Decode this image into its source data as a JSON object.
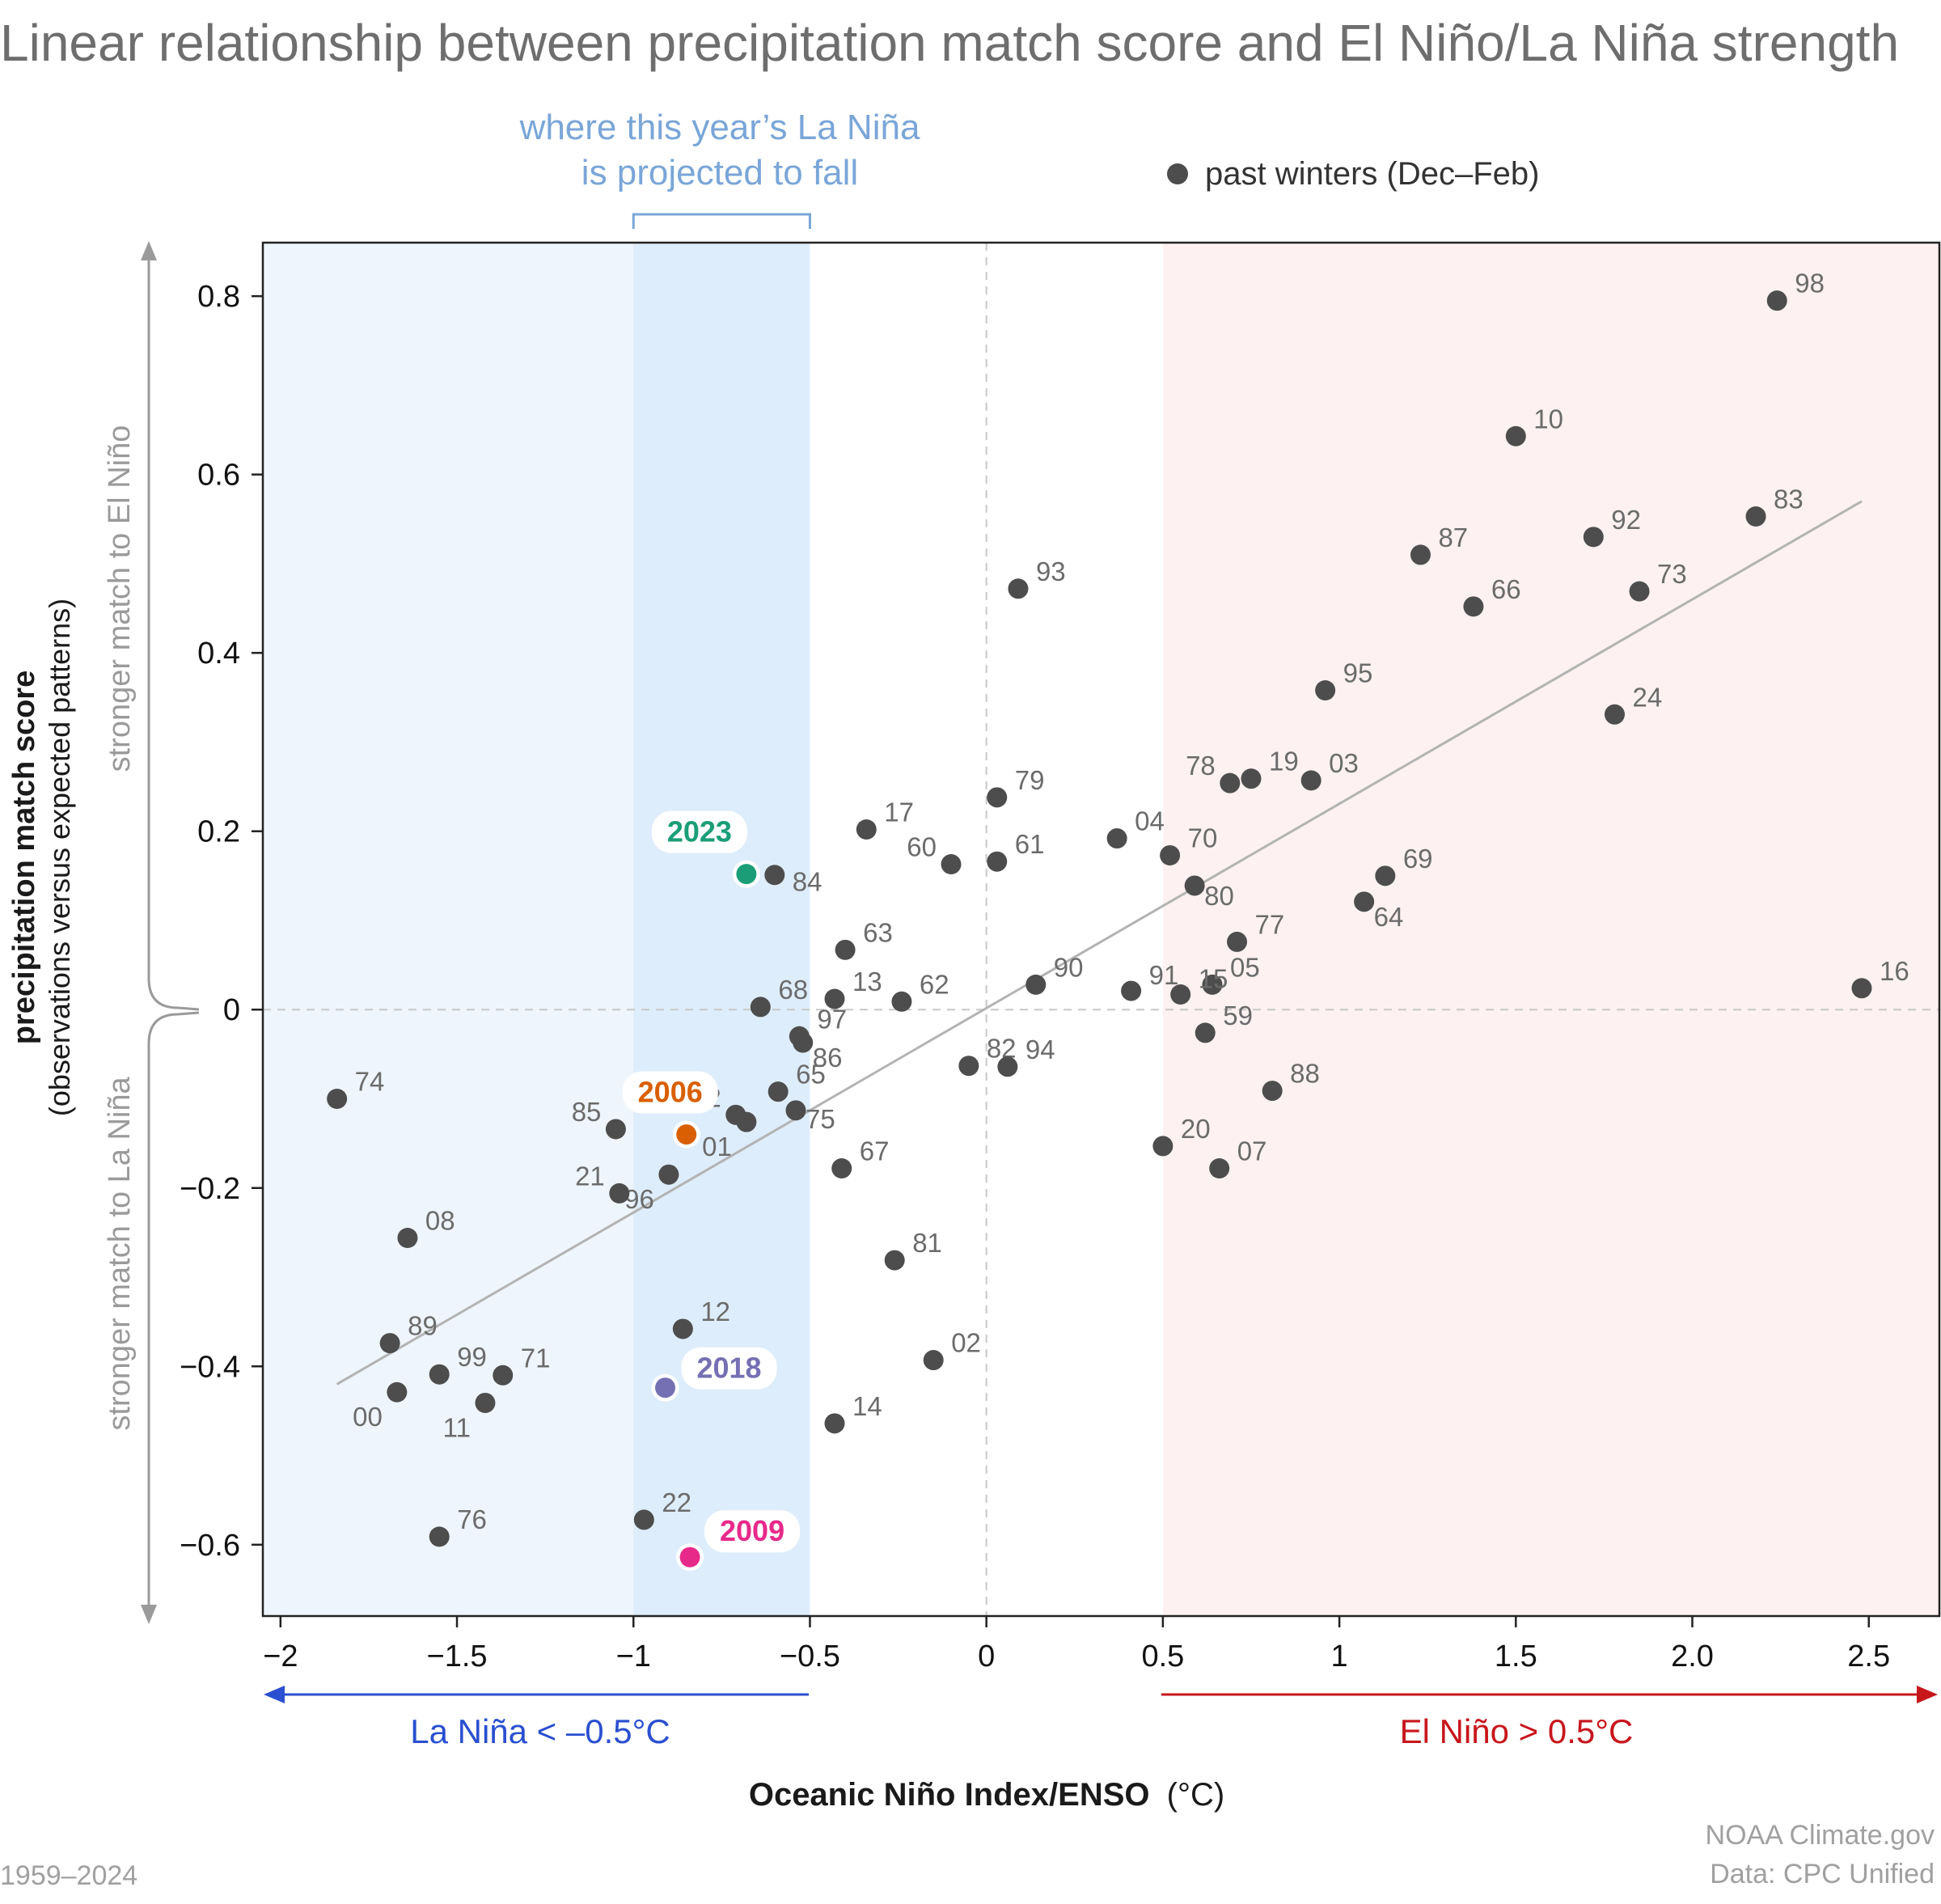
{
  "title": "Linear relationship between precipitation match score and El Niño/La Niña strength",
  "projection_label_line1": "where this year’s La Niña",
  "projection_label_line2": "is projected to fall",
  "legend_label": "past winters (Dec–Feb)",
  "y_label_main": "precipitation match score",
  "y_label_sub": "(observations versus expected patterns)",
  "y_side_upper": "stronger match to El Niño",
  "y_side_lower": "stronger match to La Niña",
  "x_label_main": "Oceanic Niño Index/ENSO",
  "x_label_unit": "(°C)",
  "la_nina_label": "La Niña < –0.5°C",
  "el_nino_label": "El Niño > 0.5°C",
  "footer_left": "1959–2024",
  "footer_right_1": "NOAA Climate.gov",
  "footer_right_2": "Data: CPC Unified",
  "colors": {
    "point": "#4d4d4d",
    "la_nina_shade": "#eef5fd",
    "projection_shade": "#deedfb",
    "el_nino_shade": "#fdf1f1",
    "trend": "#b3b3b3",
    "la_nina_arrow": "#2a4fd0",
    "el_nino_arrow": "#c8161d"
  },
  "chart_data": {
    "type": "scatter",
    "xlim": [
      -2.05,
      2.7
    ],
    "ylim": [
      -0.68,
      0.86
    ],
    "x_ticks": [
      -2,
      -1.5,
      -1,
      -0.5,
      0,
      0.5,
      1,
      1.5,
      2.0,
      2.5
    ],
    "x_tick_labels": [
      "−2",
      "−1.5",
      "−1",
      "−0.5",
      "0",
      "0.5",
      "1",
      "1.5",
      "2.0",
      "2.5"
    ],
    "y_ticks": [
      0.8,
      0.6,
      0.4,
      0.2,
      0,
      -0.2,
      -0.4,
      -0.6
    ],
    "y_tick_labels": [
      "0.8",
      "0.6",
      "0.4",
      "0.2",
      "0",
      "−0.2",
      "−0.4",
      "−0.6"
    ],
    "la_nina_threshold": -0.5,
    "el_nino_threshold": 0.5,
    "projected_range": [
      -1.0,
      -0.5
    ],
    "trend_line": {
      "x": [
        -1.84,
        2.48
      ],
      "y": [
        -0.42,
        0.57
      ]
    },
    "points": [
      {
        "label": "98",
        "x": 2.24,
        "y": 0.795
      },
      {
        "label": "10",
        "x": 1.5,
        "y": 0.643
      },
      {
        "label": "83",
        "x": 2.18,
        "y": 0.553
      },
      {
        "label": "92",
        "x": 1.72,
        "y": 0.53
      },
      {
        "label": "87",
        "x": 1.23,
        "y": 0.51
      },
      {
        "label": "73",
        "x": 1.85,
        "y": 0.469
      },
      {
        "label": "93",
        "x": 0.09,
        "y": 0.472
      },
      {
        "label": "66",
        "x": 1.38,
        "y": 0.452
      },
      {
        "label": "95",
        "x": 0.96,
        "y": 0.358
      },
      {
        "label": "24",
        "x": 1.78,
        "y": 0.331
      },
      {
        "label": "78",
        "x": 0.69,
        "y": 0.254
      },
      {
        "label": "19",
        "x": 0.75,
        "y": 0.259
      },
      {
        "label": "03",
        "x": 0.92,
        "y": 0.257
      },
      {
        "label": "79",
        "x": 0.03,
        "y": 0.238
      },
      {
        "label": "17",
        "x": -0.34,
        "y": 0.202
      },
      {
        "label": "04",
        "x": 0.37,
        "y": 0.192
      },
      {
        "label": "70",
        "x": 0.52,
        "y": 0.173
      },
      {
        "label": "60",
        "x": -0.1,
        "y": 0.163
      },
      {
        "label": "61",
        "x": 0.03,
        "y": 0.166
      },
      {
        "label": "84",
        "x": -0.6,
        "y": 0.151
      },
      {
        "label": "69",
        "x": 1.13,
        "y": 0.15
      },
      {
        "label": "80",
        "x": 0.59,
        "y": 0.139
      },
      {
        "label": "64",
        "x": 1.07,
        "y": 0.121
      },
      {
        "label": "77",
        "x": 0.71,
        "y": 0.076
      },
      {
        "label": "63",
        "x": -0.4,
        "y": 0.067
      },
      {
        "label": "90",
        "x": 0.14,
        "y": 0.028
      },
      {
        "label": "16",
        "x": 2.48,
        "y": 0.024
      },
      {
        "label": "91",
        "x": 0.41,
        "y": 0.021
      },
      {
        "label": "05",
        "x": 0.64,
        "y": 0.028
      },
      {
        "label": "15",
        "x": 0.55,
        "y": 0.017
      },
      {
        "label": "13",
        "x": -0.43,
        "y": 0.012
      },
      {
        "label": "62",
        "x": -0.24,
        "y": 0.009
      },
      {
        "label": "68",
        "x": -0.64,
        "y": 0.003
      },
      {
        "label": "59",
        "x": 0.62,
        "y": -0.026
      },
      {
        "label": "97",
        "x": -0.53,
        "y": -0.03
      },
      {
        "label": "86",
        "x": -0.52,
        "y": -0.037
      },
      {
        "label": "82",
        "x": -0.05,
        "y": -0.063
      },
      {
        "label": "94",
        "x": 0.06,
        "y": -0.064
      },
      {
        "label": "88",
        "x": 0.81,
        "y": -0.091
      },
      {
        "label": "65",
        "x": -0.59,
        "y": -0.092
      },
      {
        "label": "74",
        "x": -1.84,
        "y": -0.1
      },
      {
        "label": "75",
        "x": -0.54,
        "y": -0.113
      },
      {
        "label": "72",
        "x": -0.71,
        "y": -0.118
      },
      {
        "label": "01",
        "x": -0.68,
        "y": -0.126
      },
      {
        "label": "85",
        "x": -1.05,
        "y": -0.134
      },
      {
        "label": "20",
        "x": 0.5,
        "y": -0.153
      },
      {
        "label": "07",
        "x": 0.66,
        "y": -0.178
      },
      {
        "label": "67",
        "x": -0.41,
        "y": -0.178
      },
      {
        "label": "96",
        "x": -0.9,
        "y": -0.185
      },
      {
        "label": "21",
        "x": -1.04,
        "y": -0.206
      },
      {
        "label": "08",
        "x": -1.64,
        "y": -0.256
      },
      {
        "label": "81",
        "x": -0.26,
        "y": -0.281
      },
      {
        "label": "12",
        "x": -0.86,
        "y": -0.358
      },
      {
        "label": "89",
        "x": -1.69,
        "y": -0.374
      },
      {
        "label": "02",
        "x": -0.15,
        "y": -0.393
      },
      {
        "label": "99",
        "x": -1.55,
        "y": -0.409
      },
      {
        "label": "71",
        "x": -1.37,
        "y": -0.41
      },
      {
        "label": "00",
        "x": -1.67,
        "y": -0.429
      },
      {
        "label": "11",
        "x": -1.42,
        "y": -0.441
      },
      {
        "label": "14",
        "x": -0.43,
        "y": -0.464
      },
      {
        "label": "22",
        "x": -0.97,
        "y": -0.572
      },
      {
        "label": "76",
        "x": -1.55,
        "y": -0.591
      }
    ],
    "highlighted": [
      {
        "label": "2023",
        "x": -0.68,
        "y": 0.152,
        "color": "#1b9e77"
      },
      {
        "label": "2006",
        "x": -0.85,
        "y": -0.14,
        "color": "#d95f02"
      },
      {
        "label": "2018",
        "x": -0.91,
        "y": -0.424,
        "color": "#7570b3"
      },
      {
        "label": "2009",
        "x": -0.84,
        "y": -0.614,
        "color": "#e7298a"
      }
    ]
  }
}
